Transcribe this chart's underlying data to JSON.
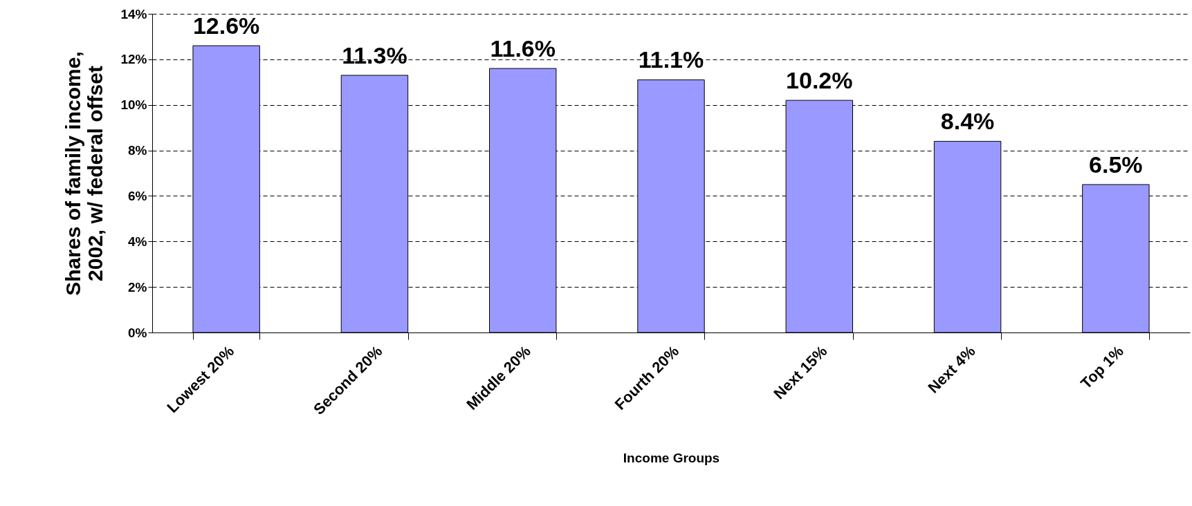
{
  "chart_data": {
    "type": "bar",
    "xlabel": "Income Groups",
    "ylabel": "Shares of family income,\n2002, w/ federal offset",
    "categories": [
      "Lowest 20%",
      "Second 20%",
      "Middle 20%",
      "Fourth 20%",
      "Next 15%",
      "Next 4%",
      "Top 1%"
    ],
    "values": [
      12.6,
      11.3,
      11.6,
      11.1,
      10.2,
      8.4,
      6.5
    ],
    "value_labels": [
      "12.6%",
      "11.3%",
      "11.6%",
      "11.1%",
      "10.2%",
      "8.4%",
      "6.5%"
    ],
    "color": "#9999ff",
    "ylim": [
      0,
      14
    ],
    "yticks": [
      {
        "value": 0,
        "label": "0%"
      },
      {
        "value": 2,
        "label": "2%"
      },
      {
        "value": 4,
        "label": "4%"
      },
      {
        "value": 6,
        "label": "6%"
      },
      {
        "value": 8,
        "label": "8%"
      },
      {
        "value": 10,
        "label": "10%"
      },
      {
        "value": 12,
        "label": "12%"
      },
      {
        "value": 14,
        "label": "14%"
      }
    ],
    "grid": "y"
  }
}
